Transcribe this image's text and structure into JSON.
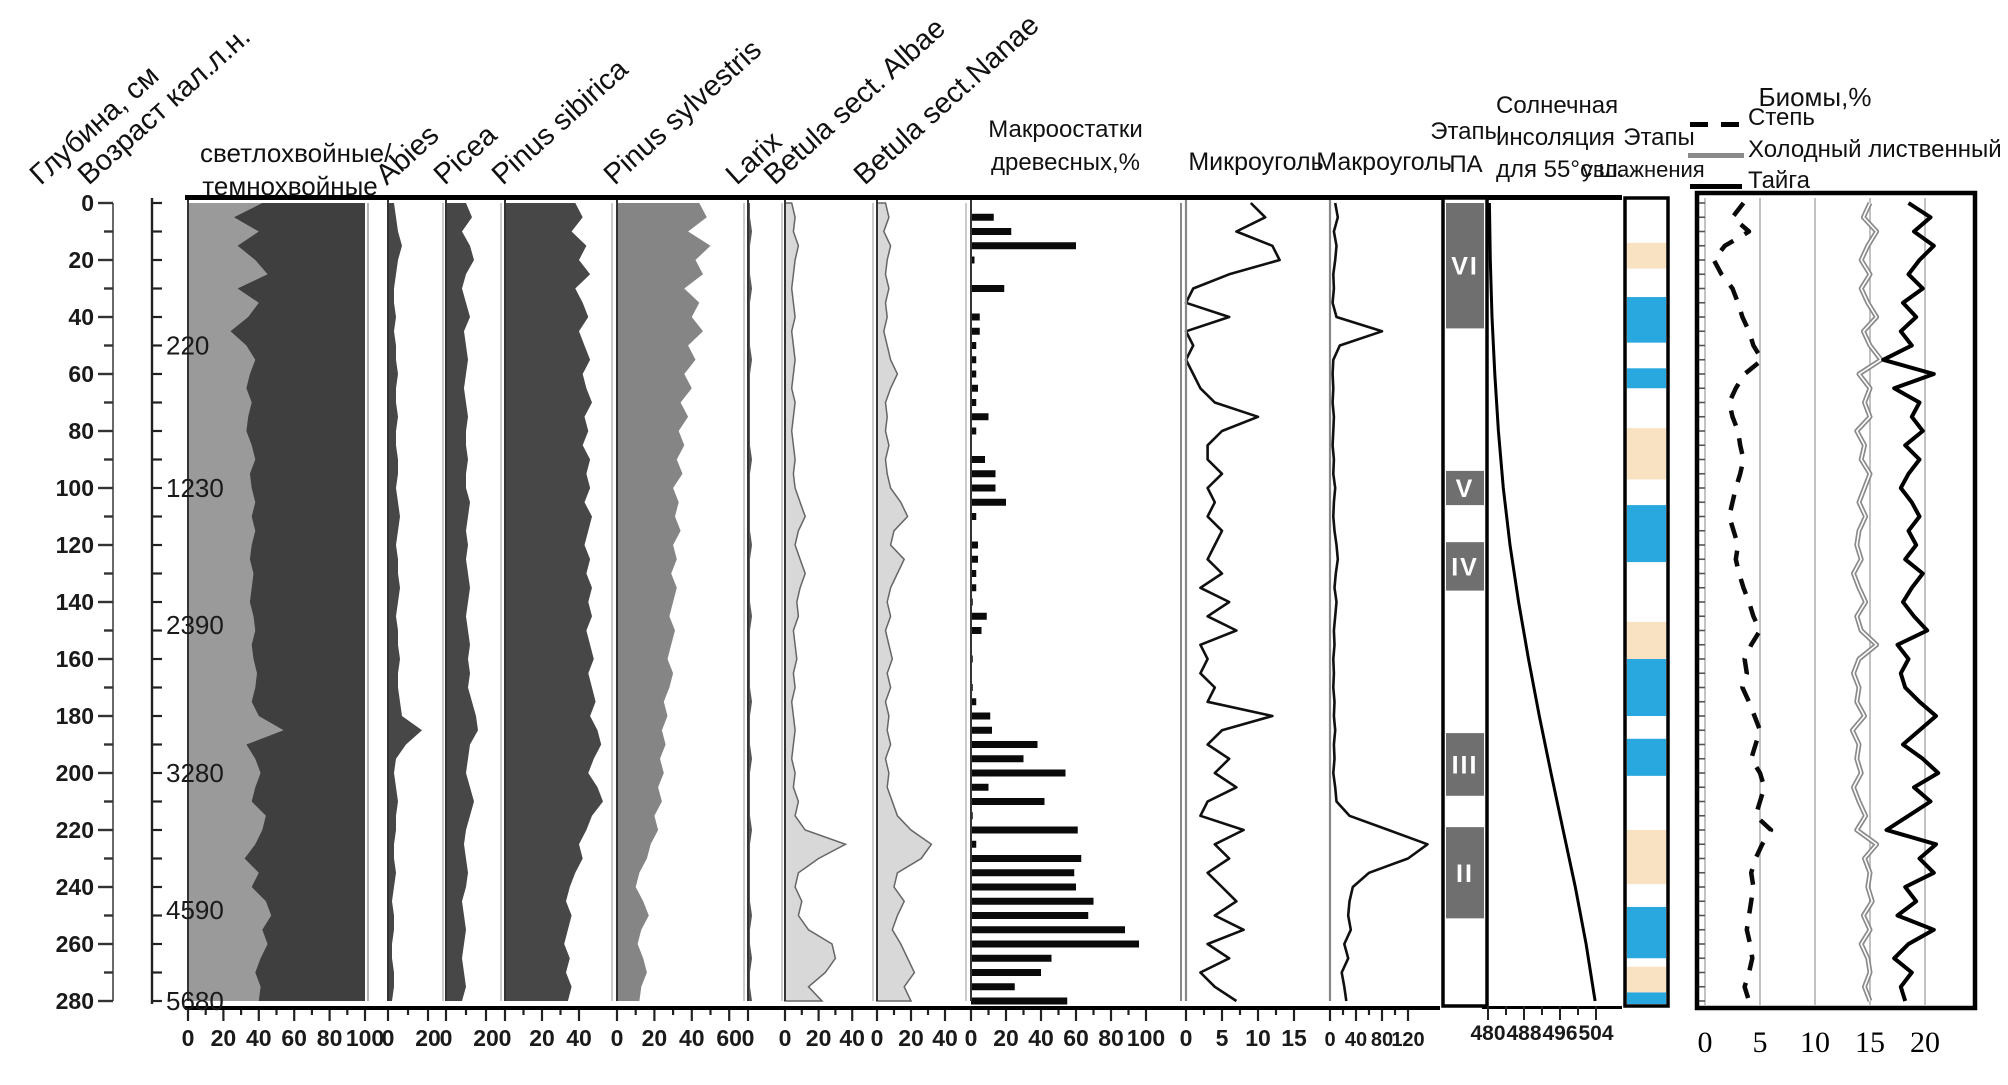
{
  "title_labels": {
    "depth": "Глубина, см",
    "age": "Возраст кал.л.н.",
    "conifer1": "светлохвойные/",
    "conifer2": "темнохвойные",
    "abies": "Abies",
    "picea": "Picea",
    "sibirica": "Pinus sibirica",
    "sylvestris": "Pinus sylvestris",
    "larix": "Larix",
    "albae": "Betula sect. Albae",
    "nanae": "Betula sect.Nanae",
    "macro_remains1": "Макроостатки",
    "macro_remains2": "древесных,%",
    "microchar": "Микроуголь",
    "macrochar": "Макроуголь",
    "stages_pa1": "Этапы",
    "stages_pa2": "ПА",
    "insolation1": "Солнечная",
    "insolation2": "инсоляция",
    "insolation3": "для 55°с.ш.",
    "moisture1": "Этапы",
    "moisture2": "увлажнения",
    "biomes_title": "Биомы,%"
  },
  "legend": {
    "steppe": "Степь",
    "forest": "Холодный лиственный лес",
    "taiga": "Тайга"
  },
  "chart_data": {
    "type": "stratigraphic-pollen-diagram",
    "sample_step_cm": 5,
    "depth_axis": {
      "range": [
        0,
        280
      ],
      "major_ticks": [
        0,
        20,
        40,
        60,
        80,
        100,
        120,
        140,
        160,
        180,
        200,
        220,
        240,
        260,
        280
      ],
      "minor_step": 10
    },
    "age_axis": {
      "labels": [
        {
          "depth": 50,
          "label": "220"
        },
        {
          "depth": 100,
          "label": "1230"
        },
        {
          "depth": 148,
          "label": "2390"
        },
        {
          "depth": 200,
          "label": "3280"
        },
        {
          "depth": 248,
          "label": "4590"
        },
        {
          "depth": 280,
          "label": "5680"
        }
      ]
    },
    "panels": [
      {
        "id": "conifer",
        "type": "stacked-area",
        "label": "светлохвойные/темнохвойные",
        "ticks": [
          0,
          20,
          40,
          60,
          80,
          100
        ],
        "light_percent": [
          42,
          26,
          40,
          28,
          38,
          45,
          28,
          40,
          34,
          24,
          33,
          38,
          35,
          33,
          36,
          34,
          33,
          36,
          38,
          35,
          36,
          38,
          36,
          38,
          36,
          35,
          37,
          36,
          35,
          37,
          38,
          36,
          37,
          39,
          38,
          36,
          40,
          54,
          33,
          38,
          41,
          38,
          36,
          44,
          42,
          38,
          32,
          40,
          36,
          44,
          47,
          42,
          45,
          41,
          38,
          41,
          40
        ]
      },
      {
        "id": "abies",
        "type": "area",
        "label": "Abies",
        "ticks": [
          0,
          20
        ],
        "values": [
          3,
          4,
          5,
          7,
          5,
          4,
          3,
          3,
          4,
          3,
          4,
          4,
          5,
          4,
          4,
          5,
          4,
          4,
          5,
          5,
          4,
          5,
          6,
          5,
          4,
          5,
          5,
          6,
          5,
          4,
          5,
          5,
          6,
          5,
          5,
          6,
          7,
          17,
          9,
          4,
          3,
          4,
          5,
          4,
          4,
          3,
          3,
          4,
          3,
          2,
          3,
          3,
          2,
          2,
          3,
          3,
          2
        ]
      },
      {
        "id": "picea",
        "type": "area",
        "label": "Picea",
        "ticks": [
          0,
          20
        ],
        "values": [
          10,
          13,
          8,
          12,
          14,
          10,
          8,
          10,
          12,
          9,
          10,
          11,
          10,
          9,
          10,
          11,
          10,
          10,
          11,
          10,
          10,
          12,
          11,
          10,
          11,
          10,
          11,
          12,
          11,
          10,
          11,
          12,
          11,
          12,
          11,
          13,
          15,
          16,
          12,
          11,
          10,
          12,
          14,
          12,
          10,
          9,
          10,
          11,
          10,
          8,
          9,
          10,
          9,
          8,
          9,
          10,
          8
        ]
      },
      {
        "id": "sibirica",
        "type": "area",
        "label": "Pinus sibirica",
        "ticks": [
          0,
          20,
          40
        ],
        "values": [
          38,
          42,
          36,
          44,
          40,
          46,
          38,
          42,
          45,
          40,
          43,
          46,
          42,
          44,
          47,
          43,
          45,
          42,
          46,
          44,
          46,
          43,
          47,
          45,
          43,
          46,
          44,
          47,
          45,
          47,
          44,
          46,
          48,
          45,
          47,
          49,
          46,
          50,
          52,
          48,
          45,
          50,
          53,
          47,
          44,
          40,
          42,
          38,
          35,
          33,
          36,
          34,
          32,
          35,
          33,
          36,
          34
        ]
      },
      {
        "id": "sylvestris",
        "type": "area",
        "label": "Pinus sylvestris",
        "ticks": [
          0,
          20,
          40,
          60
        ],
        "values": [
          44,
          48,
          38,
          50,
          42,
          46,
          36,
          44,
          40,
          46,
          38,
          42,
          36,
          40,
          34,
          38,
          33,
          36,
          32,
          35,
          30,
          33,
          31,
          34,
          30,
          32,
          29,
          32,
          30,
          28,
          31,
          29,
          27,
          30,
          28,
          25,
          27,
          24,
          26,
          23,
          25,
          22,
          24,
          20,
          22,
          18,
          16,
          12,
          10,
          14,
          17,
          13,
          11,
          14,
          16,
          13,
          12
        ]
      },
      {
        "id": "larix",
        "type": "area",
        "label": "Larix",
        "ticks": [
          0
        ],
        "values": [
          1,
          1,
          2,
          1,
          1,
          1,
          2,
          1,
          1,
          1,
          1,
          2,
          1,
          1,
          1,
          1,
          1,
          1,
          2,
          1,
          1,
          1,
          1,
          1,
          2,
          1,
          1,
          1,
          1,
          2,
          1,
          1,
          1,
          1,
          1,
          2,
          1,
          1,
          1,
          2,
          1,
          1,
          1,
          1,
          2,
          1,
          1,
          1,
          1,
          1,
          2,
          1,
          1,
          2,
          1,
          1,
          2
        ]
      },
      {
        "id": "albae",
        "type": "area",
        "label": "Betula sect. Albae",
        "ticks": [
          0,
          20,
          40
        ],
        "values": [
          4,
          6,
          5,
          8,
          6,
          5,
          4,
          5,
          6,
          4,
          5,
          6,
          5,
          4,
          6,
          5,
          4,
          5,
          6,
          5,
          6,
          9,
          12,
          8,
          6,
          9,
          12,
          9,
          7,
          8,
          5,
          6,
          7,
          5,
          6,
          4,
          5,
          6,
          5,
          4,
          6,
          5,
          8,
          6,
          12,
          36,
          20,
          8,
          6,
          10,
          8,
          14,
          28,
          30,
          24,
          14,
          22
        ]
      },
      {
        "id": "nanae",
        "type": "area",
        "label": "Betula sect.Nanae",
        "ticks": [
          0,
          20,
          40
        ],
        "values": [
          5,
          7,
          4,
          8,
          6,
          5,
          7,
          5,
          6,
          4,
          6,
          8,
          12,
          8,
          5,
          6,
          5,
          7,
          5,
          6,
          8,
          14,
          18,
          10,
          8,
          16,
          12,
          8,
          6,
          8,
          5,
          7,
          9,
          6,
          8,
          5,
          7,
          6,
          8,
          5,
          7,
          6,
          9,
          12,
          20,
          32,
          26,
          12,
          10,
          16,
          12,
          9,
          14,
          18,
          22,
          16,
          20
        ]
      },
      {
        "id": "bars",
        "type": "bars",
        "label": "Макроостатки древесных,%",
        "ticks": [
          0,
          20,
          40,
          60,
          80,
          100
        ],
        "values": [
          0,
          13,
          23,
          60,
          2,
          0,
          19,
          0,
          5,
          5,
          3,
          3,
          3,
          4,
          3,
          10,
          3,
          0,
          8,
          14,
          14,
          20,
          3,
          0,
          4,
          4,
          3,
          3,
          1,
          9,
          6,
          0,
          1,
          0,
          1,
          3,
          11,
          12,
          38,
          30,
          54,
          10,
          42,
          1,
          61,
          3,
          63,
          59,
          60,
          70,
          67,
          88,
          96,
          46,
          40,
          25,
          55
        ]
      },
      {
        "id": "micro",
        "type": "line",
        "label": "Микроуголь",
        "ticks": [
          0,
          5,
          10,
          15
        ],
        "values": [
          9,
          11,
          7,
          12,
          13,
          6,
          1,
          0,
          6,
          0,
          1,
          0,
          1,
          2,
          4,
          10,
          5,
          3,
          3,
          5,
          3,
          4,
          3,
          5,
          4,
          3,
          5,
          2,
          6,
          3,
          7,
          2,
          3,
          2,
          4,
          3,
          12,
          5,
          3,
          6,
          4,
          7,
          3,
          2,
          8,
          4,
          6,
          3,
          5,
          7,
          4,
          8,
          3,
          6,
          2,
          4,
          7
        ]
      },
      {
        "id": "macro",
        "type": "line",
        "label": "Макроуголь",
        "ticks": [
          0,
          40,
          80,
          120
        ],
        "values": [
          8,
          12,
          6,
          10,
          8,
          5,
          6,
          4,
          10,
          80,
          15,
          5,
          4,
          5,
          4,
          6,
          5,
          4,
          6,
          5,
          8,
          6,
          5,
          7,
          10,
          12,
          9,
          7,
          10,
          8,
          6,
          7,
          5,
          6,
          5,
          7,
          6,
          8,
          6,
          7,
          5,
          8,
          10,
          30,
          90,
          150,
          120,
          60,
          35,
          30,
          28,
          32,
          22,
          28,
          18,
          22,
          25
        ]
      }
    ],
    "stages_pa": {
      "label": "Этапы ПА",
      "blocks": [
        {
          "label": "VI",
          "from": 0,
          "to": 44
        },
        {
          "label": "V",
          "from": 94,
          "to": 106
        },
        {
          "label": "IV",
          "from": 119,
          "to": 136
        },
        {
          "label": "III",
          "from": 186,
          "to": 208
        },
        {
          "label": "II",
          "from": 219,
          "to": 251
        }
      ]
    },
    "insolation": {
      "label": "Солнечная инсоляция для 55°с.ш.",
      "ticks": [
        480,
        488,
        496,
        504
      ],
      "minor_step": 4,
      "depths": [
        0,
        20,
        40,
        60,
        80,
        100,
        120,
        140,
        160,
        180,
        200,
        220,
        240,
        260,
        280
      ],
      "values": [
        480.3,
        480.5,
        480.9,
        481.5,
        482.3,
        483.4,
        484.9,
        486.8,
        489.0,
        491.4,
        494.0,
        496.7,
        499.4,
        501.8,
        503.8
      ]
    },
    "moisture_stages": {
      "label": "Этапы увлажнения",
      "blocks": [
        {
          "type": "dry",
          "from": 14,
          "to": 23
        },
        {
          "type": "wet",
          "from": 33,
          "to": 49
        },
        {
          "type": "wet",
          "from": 58,
          "to": 65
        },
        {
          "type": "dry",
          "from": 79,
          "to": 97
        },
        {
          "type": "wet",
          "from": 106,
          "to": 126
        },
        {
          "type": "dry",
          "from": 147,
          "to": 160
        },
        {
          "type": "wet",
          "from": 160,
          "to": 180
        },
        {
          "type": "wet",
          "from": 188,
          "to": 201
        },
        {
          "type": "dry",
          "from": 220,
          "to": 239
        },
        {
          "type": "wet",
          "from": 247,
          "to": 265
        },
        {
          "type": "dry",
          "from": 268,
          "to": 277
        },
        {
          "type": "wet",
          "from": 277,
          "to": 282
        }
      ]
    },
    "biomes": {
      "label": "Биомы,%",
      "ticks": [
        0,
        5,
        10,
        15,
        20
      ],
      "series": [
        {
          "name": "Степь",
          "style": "dashed-black",
          "values": [
            3.5,
            2.5,
            4,
            1.8,
            0.8,
            1.5,
            2.5,
            3,
            3.4,
            4,
            4.4,
            5.2,
            3.6,
            2.8,
            2.2,
            2.5,
            3,
            3.2,
            3.5,
            3.2,
            2.8,
            2.5,
            2.2,
            2.6,
            3,
            2.8,
            3.1,
            3.5,
            4,
            4.4,
            5,
            4.2,
            3.6,
            3.8,
            3.4,
            4,
            4.5,
            5,
            4.6,
            4.2,
            5,
            5.4,
            5,
            4.6,
            6,
            5.2,
            4.6,
            4.2,
            4.4,
            4.2,
            4,
            3.8,
            4.1,
            4.3,
            4,
            3.6,
            4
          ]
        },
        {
          "name": "Холодный лиственный лес",
          "style": "solid-gray",
          "values": [
            15,
            14.4,
            15.6,
            14.8,
            14.2,
            15,
            14.2,
            14.8,
            15.6,
            14.4,
            15,
            16,
            14,
            15,
            14.5,
            15,
            13.8,
            14.5,
            14.2,
            15,
            14.5,
            14,
            14.6,
            14,
            13.8,
            14.2,
            13.5,
            14,
            14.6,
            13.8,
            14.2,
            15.6,
            14,
            13.5,
            14,
            13.8,
            14.5,
            13.4,
            14,
            13.8,
            14.2,
            13.5,
            14,
            14.6,
            13.8,
            15.6,
            14.5,
            15,
            14.8,
            15.2,
            14.4,
            15,
            14.2,
            14.8,
            15,
            14.5,
            15
          ]
        },
        {
          "name": "Тайга",
          "style": "solid-black",
          "values": [
            18.5,
            20.5,
            19,
            20.8,
            19.5,
            18.5,
            19.8,
            18,
            19.2,
            17.8,
            18.8,
            16.2,
            20.8,
            17.2,
            19.5,
            18.8,
            19.8,
            18.2,
            19.5,
            18.5,
            17.8,
            18.8,
            19.5,
            18.5,
            19.2,
            18.2,
            19.8,
            18.8,
            18,
            19,
            20.2,
            17.5,
            18.5,
            17.8,
            18.2,
            19.5,
            21,
            19.5,
            18,
            19.8,
            21.2,
            19,
            20.5,
            18.5,
            16.5,
            21,
            19.5,
            20.8,
            18.2,
            19.2,
            17.5,
            20.8,
            18.5,
            17.2,
            18.8,
            17.8,
            18.2
          ]
        }
      ]
    },
    "colors": {
      "light_conifer": "#9a9a9a",
      "dark_conifer": "#3f3f3f",
      "dark_area": "#474747",
      "sylvestris_area": "#858585",
      "betula_area": "#d8d8d8",
      "bar": "#0a0a0a",
      "pa_block": "#6f6f6f",
      "wet": "#29a8e0",
      "dry": "#f8e2c2",
      "forest_line": "#8a8a8a"
    }
  }
}
